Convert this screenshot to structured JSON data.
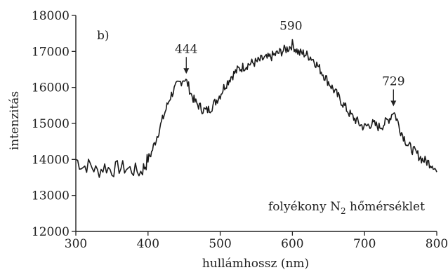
{
  "chart_data": {
    "type": "line",
    "panel_label": "b)",
    "xlabel": "hullámhossz (nm)",
    "ylabel": "intenzitás",
    "xlim": [
      300,
      800
    ],
    "ylim": [
      12000,
      18000
    ],
    "x_ticks": [
      300,
      400,
      500,
      600,
      700,
      800
    ],
    "y_ticks": [
      12000,
      13000,
      14000,
      15000,
      16000,
      17000,
      18000
    ],
    "annotation": {
      "main": "folyékony N",
      "sub": "2",
      "rest": " hőmérséklet"
    },
    "peak_labels": [
      {
        "label": "444",
        "x": 453,
        "y": 16300
      },
      {
        "label": "590",
        "x": 598,
        "y": 17250
      },
      {
        "label": "729",
        "x": 740,
        "y": 15400
      }
    ],
    "series": [
      {
        "x": [
          300,
          310,
          320,
          330,
          340,
          350,
          360,
          370,
          380,
          390,
          395,
          400,
          405,
          410,
          415,
          420,
          425,
          430,
          435,
          440,
          445,
          450,
          455,
          460,
          465,
          470,
          475,
          480,
          485,
          490,
          495,
          500,
          505,
          510,
          515,
          520,
          525,
          530,
          535,
          540,
          545,
          550,
          555,
          560,
          565,
          570,
          575,
          580,
          585,
          590,
          595,
          600,
          605,
          610,
          615,
          620,
          625,
          630,
          635,
          640,
          645,
          650,
          655,
          660,
          665,
          670,
          675,
          680,
          685,
          690,
          695,
          700,
          705,
          710,
          715,
          720,
          725,
          730,
          735,
          740,
          745,
          750,
          755,
          760,
          765,
          770,
          775,
          780,
          785,
          790,
          795,
          800
        ],
        "y": [
          14000,
          13800,
          13850,
          13650,
          13800,
          13700,
          13780,
          13750,
          13700,
          13650,
          13800,
          14000,
          14200,
          14500,
          14800,
          15100,
          15400,
          15700,
          15900,
          16050,
          16150,
          16250,
          16100,
          15800,
          15600,
          15500,
          15400,
          15350,
          15400,
          15500,
          15650,
          15800,
          16000,
          16150,
          16300,
          16400,
          16500,
          16550,
          16600,
          16650,
          16680,
          16700,
          16750,
          16800,
          16800,
          16850,
          16900,
          16950,
          17000,
          17050,
          17100,
          17200,
          17050,
          16950,
          16950,
          16900,
          16850,
          16750,
          16600,
          16450,
          16300,
          16150,
          16000,
          15850,
          15700,
          15550,
          15400,
          15250,
          15150,
          15050,
          14950,
          14900,
          14950,
          15000,
          14950,
          14900,
          14950,
          15050,
          15150,
          15350,
          15100,
          14800,
          14600,
          14400,
          14300,
          14200,
          14100,
          14000,
          13950,
          13900,
          13850,
          13650
        ]
      }
    ]
  }
}
